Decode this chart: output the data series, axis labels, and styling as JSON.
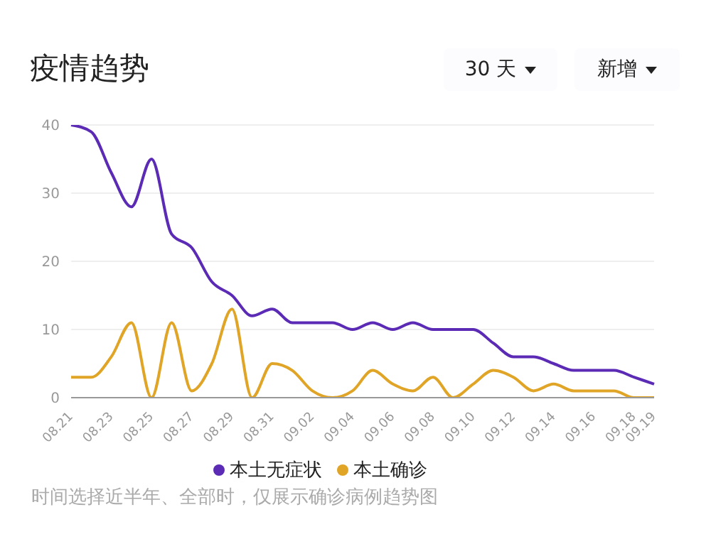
{
  "chart_data": {
    "type": "line",
    "title": "疫情趋势",
    "categories": [
      "08.21",
      null,
      "08.23",
      null,
      "08.25",
      null,
      "08.27",
      null,
      "08.29",
      null,
      "08.31",
      null,
      "09.02",
      null,
      "09.04",
      null,
      "09.06",
      null,
      "09.08",
      null,
      "09.10",
      null,
      "09.12",
      null,
      "09.14",
      null,
      "09.16",
      null,
      "09.18",
      "09.19"
    ],
    "series": [
      {
        "name": "本土确诊",
        "color": "#e0a526",
        "values": [
          3,
          3,
          6,
          11,
          0,
          11,
          1,
          5,
          13,
          0,
          5,
          4,
          1,
          0,
          1,
          4,
          2,
          1,
          3,
          0,
          2,
          4,
          3,
          1,
          2,
          1,
          1,
          1,
          0,
          0
        ]
      },
      {
        "name": "本土无症状",
        "color": "#5b2bb5",
        "values": [
          40,
          39,
          33,
          28,
          35,
          24,
          22,
          17,
          15,
          12,
          13,
          11,
          11,
          11,
          10,
          11,
          10,
          11,
          10,
          10,
          10,
          8,
          6,
          6,
          5,
          4,
          4,
          4,
          3,
          2
        ]
      }
    ],
    "ylim": [
      0,
      40
    ],
    "yticks": [
      0,
      10,
      20,
      30,
      40
    ],
    "grid": "y",
    "legend": "bottom",
    "marker": "none",
    "line_style": "solid",
    "annotations": [
      "30 天",
      "新增",
      "时间选择近半年、全部时，仅展示确诊病例趋势图"
    ]
  }
}
